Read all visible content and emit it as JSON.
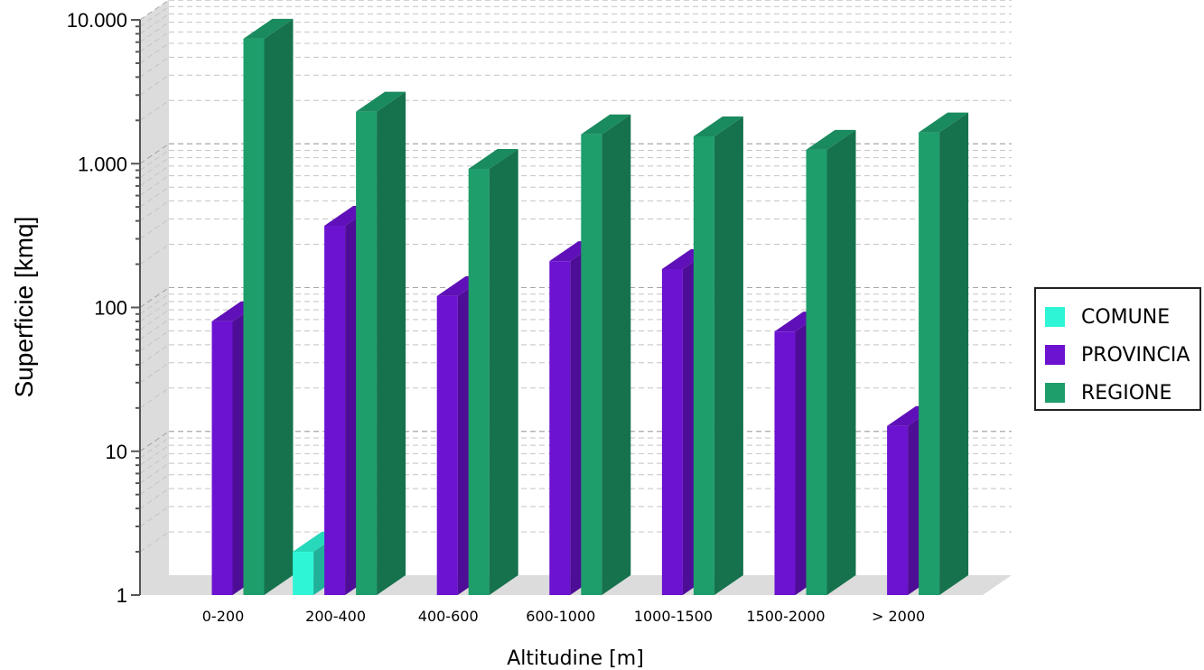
{
  "chart_data": {
    "type": "bar",
    "title": "",
    "xlabel": "Altitudine [m]",
    "ylabel": "Superficie [kmq]",
    "yscale": "log",
    "ylim": [
      1,
      10000
    ],
    "yticks": [
      {
        "value": 1,
        "label": "1"
      },
      {
        "value": 10,
        "label": "10"
      },
      {
        "value": 100,
        "label": "100"
      },
      {
        "value": 1000,
        "label": "1.000"
      },
      {
        "value": 10000,
        "label": "10.000"
      }
    ],
    "grid": true,
    "legend_position": "right",
    "categories": [
      "0-200",
      "200-400",
      "400-600",
      "600-1000",
      "1000-1500",
      "1500-2000",
      "> 2000"
    ],
    "series": [
      {
        "name": "COMUNE",
        "color": "#2ef5d5",
        "values": [
          null,
          2,
          null,
          null,
          null,
          null,
          null
        ]
      },
      {
        "name": "PROVINCIA",
        "color": "#6c12d1",
        "values": [
          80,
          370,
          120,
          210,
          185,
          68,
          15
        ]
      },
      {
        "name": "REGIONE",
        "color": "#1e9e6b",
        "values": [
          7400,
          2300,
          920,
          1600,
          1550,
          1250,
          1650
        ]
      }
    ]
  }
}
